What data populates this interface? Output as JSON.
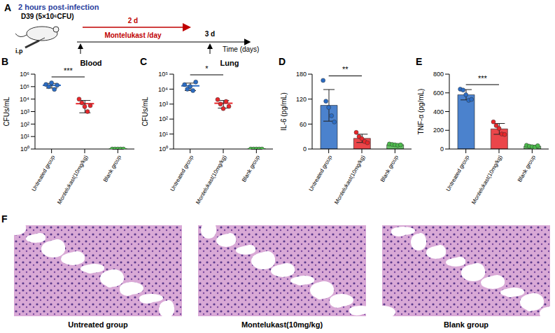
{
  "panel_a": {
    "letter": "A",
    "header": "2 hours post-infection",
    "inoculum": "D39 (5×10⁶CFU)",
    "route": "i.p",
    "treatment": "Montelukast /day",
    "duration": "2 d",
    "endpoint": "3 d",
    "axis_label": "Time (days)"
  },
  "chart_data": [
    {
      "panel": "B",
      "type": "scatter",
      "title": "Blood",
      "y_label": "CFUs/mL",
      "categories": [
        "Untreated group",
        "Montelukast(10mg/kg)",
        "Blank group"
      ],
      "colors": [
        "#2b6cc4",
        "#e8262a",
        "#4cbb4c"
      ],
      "points": [
        [
          150000,
          100000,
          200000,
          60000,
          130000
        ],
        [
          10000,
          5000,
          2500,
          1000,
          3000
        ],
        [
          1,
          1,
          1,
          1,
          1
        ]
      ],
      "means": [
        128000,
        4300,
        1
      ],
      "sd": [
        52000,
        3500,
        0
      ],
      "log": "y",
      "ylim": [
        1,
        1000000
      ],
      "yticks": [
        {
          "value": 1,
          "label": "10⁰"
        },
        {
          "value": 10,
          "label": "10¹"
        },
        {
          "value": 100,
          "label": "10²"
        },
        {
          "value": 1000,
          "label": "10³"
        },
        {
          "value": 10000,
          "label": "10⁴"
        },
        {
          "value": 100000,
          "label": "10⁵"
        },
        {
          "value": 1000000,
          "label": "10⁶"
        }
      ],
      "significance": [
        {
          "label": "***",
          "groups": [
            0,
            1
          ]
        }
      ]
    },
    {
      "panel": "C",
      "type": "scatter",
      "title": "Lung",
      "y_label": "CFUs/mL",
      "categories": [
        "Untreated group",
        "Montelukast(10mg/kg)",
        "Blank group"
      ],
      "colors": [
        "#2b6cc4",
        "#e8262a",
        "#4cbb4c"
      ],
      "points": [
        [
          20000,
          10000,
          15000,
          8000,
          30000
        ],
        [
          2000,
          1000,
          500,
          1500,
          700
        ],
        [
          1,
          1,
          1,
          1,
          1
        ]
      ],
      "means": [
        16600,
        1140,
        1
      ],
      "sd": [
        8600,
        600,
        0
      ],
      "log": "y",
      "ylim": [
        1,
        100000
      ],
      "yticks": [
        {
          "value": 1,
          "label": "10⁰"
        },
        {
          "value": 10,
          "label": "10¹"
        },
        {
          "value": 100,
          "label": "10²"
        },
        {
          "value": 1000,
          "label": "10³"
        },
        {
          "value": 10000,
          "label": "10⁴"
        },
        {
          "value": 100000,
          "label": "10⁵"
        }
      ],
      "significance": [
        {
          "label": "*",
          "groups": [
            0,
            1
          ]
        }
      ]
    },
    {
      "panel": "D",
      "type": "bar",
      "y_label": "IL-6 (pg/mL)",
      "categories": [
        "Untreated group",
        "Montelukast(10mg/kg)",
        "Blank group"
      ],
      "colors": [
        "#2b6cc4",
        "#e8262a",
        "#4cbb4c"
      ],
      "points": [
        [
          165,
          115,
          100,
          80,
          65
        ],
        [
          40,
          30,
          25,
          18,
          15
        ],
        [
          12,
          11,
          10,
          9,
          10
        ]
      ],
      "means": [
        105,
        25.6,
        10.4
      ],
      "sd": [
        38,
        10,
        1.1
      ],
      "ylim": [
        0,
        180
      ],
      "yticks": [
        0,
        60,
        120,
        180
      ],
      "significance": [
        {
          "label": "**",
          "groups": [
            0,
            1
          ]
        }
      ]
    },
    {
      "panel": "E",
      "type": "bar",
      "y_label": "TNF-α (pg/mL)",
      "categories": [
        "Untreated group",
        "Montelukast(10mg/kg)",
        "Blank group"
      ],
      "colors": [
        "#2b6cc4",
        "#e8262a",
        "#4cbb4c"
      ],
      "points": [
        [
          640,
          630,
          580,
          520,
          530
        ],
        [
          290,
          250,
          220,
          160,
          155
        ],
        [
          40,
          30,
          25,
          20,
          35
        ]
      ],
      "means": [
        580,
        215,
        30
      ],
      "sd": [
        55,
        58,
        8
      ],
      "ylim": [
        0,
        800
      ],
      "yticks": [
        0,
        200,
        400,
        600,
        800
      ],
      "significance": [
        {
          "label": "***",
          "groups": [
            0,
            1
          ]
        }
      ]
    }
  ],
  "panel_f": {
    "letter": "F",
    "images": [
      {
        "caption": "Untreated group"
      },
      {
        "caption": "Montelukast(10mg/kg)"
      },
      {
        "caption": "Blank group"
      }
    ]
  }
}
